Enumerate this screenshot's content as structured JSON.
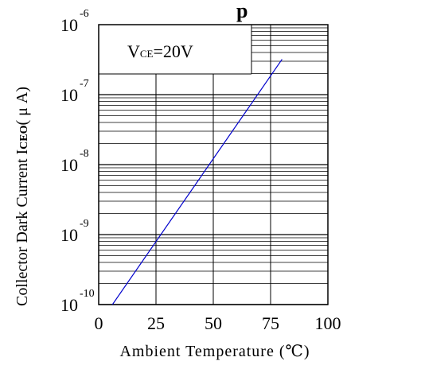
{
  "chart_data": {
    "type": "line",
    "title": "",
    "title_visible_fragment": "p",
    "xlabel": "Ambient Temperature (℃)",
    "ylabel": "Collector   Dark Current I CEO ( μ A)",
    "ylabel_main": "Collector   Dark Current I",
    "ylabel_sub": "CEO",
    "ylabel_unit": "( μ A)",
    "x_ticks": [
      "0",
      "25",
      "50",
      "75",
      "100"
    ],
    "xlim": [
      0,
      100
    ],
    "y_scale": "log",
    "ylim": [
      1e-10,
      1e-06
    ],
    "y_ticks": [
      {
        "base": "10",
        "exp": "-10",
        "value": 1e-10
      },
      {
        "base": "10",
        "exp": "-9",
        "value": 1e-09
      },
      {
        "base": "10",
        "exp": "-8",
        "value": 1e-08
      },
      {
        "base": "10",
        "exp": "-7",
        "value": 1e-07
      },
      {
        "base": "10",
        "exp": "-6",
        "value": 1e-06
      }
    ],
    "grid": true,
    "annotation": {
      "main": "V",
      "sub": "CE",
      "value": "=20V"
    },
    "line_color": "#0000cc",
    "series": [
      {
        "x": [
          6,
          80
        ],
        "y": [
          1e-10,
          3.2e-07
        ]
      }
    ]
  }
}
